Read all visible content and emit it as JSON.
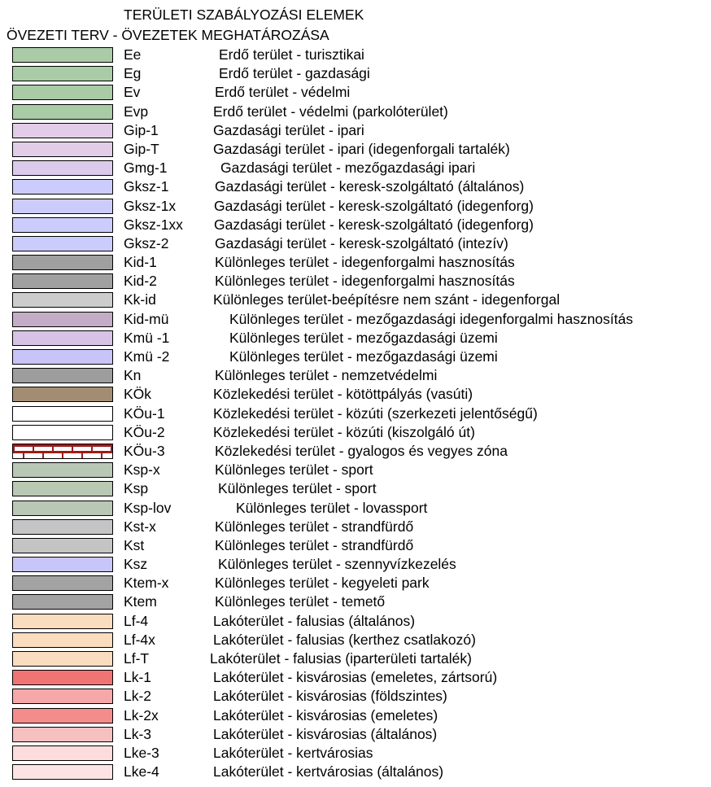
{
  "header": {
    "title": "TERÜLETI SZABÁLYOZÁSI ELEMEK",
    "subtitle": "ÖVEZETI TERV - ÖVEZETEK MEGHATÁROZÁSA"
  },
  "legend": [
    {
      "code": "Ee",
      "desc": "Erdő terület - turisztikai",
      "color": "#a9cba6"
    },
    {
      "code": "Eg",
      "desc": "Erdő terület - gazdasági",
      "color": "#a9cba6"
    },
    {
      "code": "Ev",
      "desc": "Erdő terület - védelmi",
      "color": "#a9cba6"
    },
    {
      "code": "Evp",
      "desc": "Erdő terület - védelmi (parkolóterület)",
      "color": "#a9cba6"
    },
    {
      "code": "Gip-1",
      "desc": "Gazdasági terület - ipari",
      "color": "#e2cce8"
    },
    {
      "code": "Gip-T",
      "desc": "Gazdasági terület - ipari (idegenforgali tartalék)",
      "color": "#e2cce8"
    },
    {
      "code": "Gmg-1",
      "desc": "Gazdasági terület - mezőgazdasági ipari",
      "color": "#dccaec"
    },
    {
      "code": "Gksz-1",
      "desc": "Gazdasági terület - keresk-szolgáltató (általános)",
      "color": "#ccccfc"
    },
    {
      "code": "Gksz-1x",
      "desc": "Gazdasági terület - keresk-szolgáltató (idegenforg)",
      "color": "#ccccfc"
    },
    {
      "code": "Gksz-1xx",
      "desc": "Gazdasági terület - keresk-szolgáltató (idegenforg)",
      "color": "#ccccfc"
    },
    {
      "code": "Gksz-2",
      "desc": "Gazdasági terület - keresk-szolgáltató (intezív)",
      "color": "#ccccfc"
    },
    {
      "code": "Kid-1",
      "desc": "Különleges terület - idegenforgalmi hasznosítás",
      "color": "#a0a0a0"
    },
    {
      "code": "Kid-2",
      "desc": "Különleges terület - idegenforgalmi hasznosítás",
      "color": "#a0a0a0"
    },
    {
      "code": "Kk-id",
      "desc": "Különleges terület-beépítésre nem szánt - idegenforgal",
      "color": "#cccccc"
    },
    {
      "code": "Kid-mü",
      "desc": "Különleges terület - mezőgazdasági idegenforgalmi hasznosítás",
      "color": "#c3adc6"
    },
    {
      "code": "Kmü -1",
      "desc": "Különleges terület - mezőgazdasági üzemi",
      "color": "#d7c3e6"
    },
    {
      "code": "Kmü -2",
      "desc": "Különleges terület - mezőgazdasági üzemi",
      "color": "#c8c4f8"
    },
    {
      "code": "Kn",
      "desc": "Különleges terület - nemzetvédelmi",
      "color": "#9d9d9d"
    },
    {
      "code": "KÖk",
      "desc": "Közlekedési terület - kötöttpályás (vasúti)",
      "color": "#a38d72"
    },
    {
      "code": "KÖu-1",
      "desc": "Közlekedési terület - közúti (szerkezeti jelentőségű)",
      "color": "#ffffff"
    },
    {
      "code": "KÖu-2",
      "desc": "Közlekedési terület - közúti (kiszolgáló út)",
      "color": "#ffffff"
    },
    {
      "code": "KÖu-3",
      "desc": "Közlekedési terület - gyalogos és vegyes zóna",
      "color": "#9b1c1c",
      "pattern": "brick"
    },
    {
      "code": "Ksp-x",
      "desc": "Különleges terület - sport",
      "color": "#b8c8b4"
    },
    {
      "code": "Ksp",
      "desc": "Különleges terület - sport",
      "color": "#b8c8b4"
    },
    {
      "code": "Ksp-lov",
      "desc": "Különleges terület - lovassport",
      "color": "#b8c8b4"
    },
    {
      "code": "Kst-x",
      "desc": "Különleges terület - strandfürdő",
      "color": "#c4c4c4"
    },
    {
      "code": "Kst",
      "desc": "Különleges terület - strandfürdő",
      "color": "#c4c4c4"
    },
    {
      "code": "Ksz",
      "desc": "Különleges terület - szennyvízkezelés",
      "color": "#c8c6f8"
    },
    {
      "code": "Ktem-x",
      "desc": "Különleges terület - kegyeleti park",
      "color": "#a3a3a3"
    },
    {
      "code": "Ktem",
      "desc": "Különleges terület - temető",
      "color": "#a3a3a3"
    },
    {
      "code": "Lf-4",
      "desc": "Lakóterület - falusias (általános)",
      "color": "#fadcbe"
    },
    {
      "code": "Lf-4x",
      "desc": "Lakóterület - falusias (kerthez csatlakozó)",
      "color": "#fadcbe"
    },
    {
      "code": "Lf-T",
      "desc": "Lakóterület - falusias (iparterületi tartalék)",
      "color": "#fadcbe"
    },
    {
      "code": "Lk-1",
      "desc": "Lakóterület - kisvárosias (emeletes, zártsorú)",
      "color": "#f07474"
    },
    {
      "code": "Lk-2",
      "desc": "Lakóterület - kisvárosias (földszintes)",
      "color": "#f4a8a8"
    },
    {
      "code": "Lk-2x",
      "desc": "Lakóterület - kisvárosias (emeletes)",
      "color": "#f48c8c"
    },
    {
      "code": "Lk-3",
      "desc": "Lakóterület - kisvárosias (általános)",
      "color": "#f6c0c0"
    },
    {
      "code": "Lke-3",
      "desc": "Lakóterület - kertvárosias",
      "color": "#fcdcdc"
    },
    {
      "code": "Lke-4",
      "desc": "Lakóterület - kertvárosias (általános)",
      "color": "#fce4e4"
    }
  ]
}
